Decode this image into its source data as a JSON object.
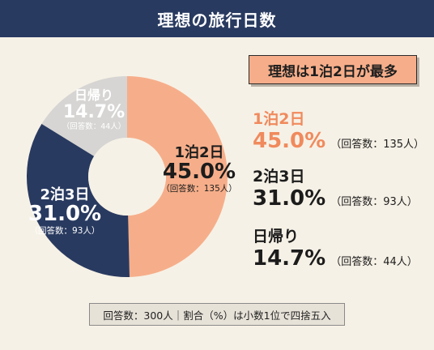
{
  "header": {
    "title": "理想の旅行日数"
  },
  "callout": {
    "text": "理想は1泊2日が最多"
  },
  "chart_data": {
    "type": "pie",
    "categories": [
      "1泊2日",
      "2泊3日",
      "日帰り"
    ],
    "values": [
      45.0,
      31.0,
      14.7
    ],
    "value_labels": [
      "45.0%",
      "31.0%",
      "14.7%"
    ],
    "counts": [
      "（回答数：135人）",
      "（回答数：93人）",
      "（回答数：44人）"
    ],
    "colors": [
      "#f6ae8a",
      "#293a60",
      "#d6d5d3"
    ],
    "text_colors": [
      "#1c1c1c",
      "#ffffff",
      "#ffffff"
    ],
    "legend_colors": [
      "#f08a5d",
      "#1c1c1c",
      "#1c1c1c"
    ]
  },
  "footer": {
    "note": "回答数：300人｜割合（%）は小数1位で四捨五入"
  }
}
